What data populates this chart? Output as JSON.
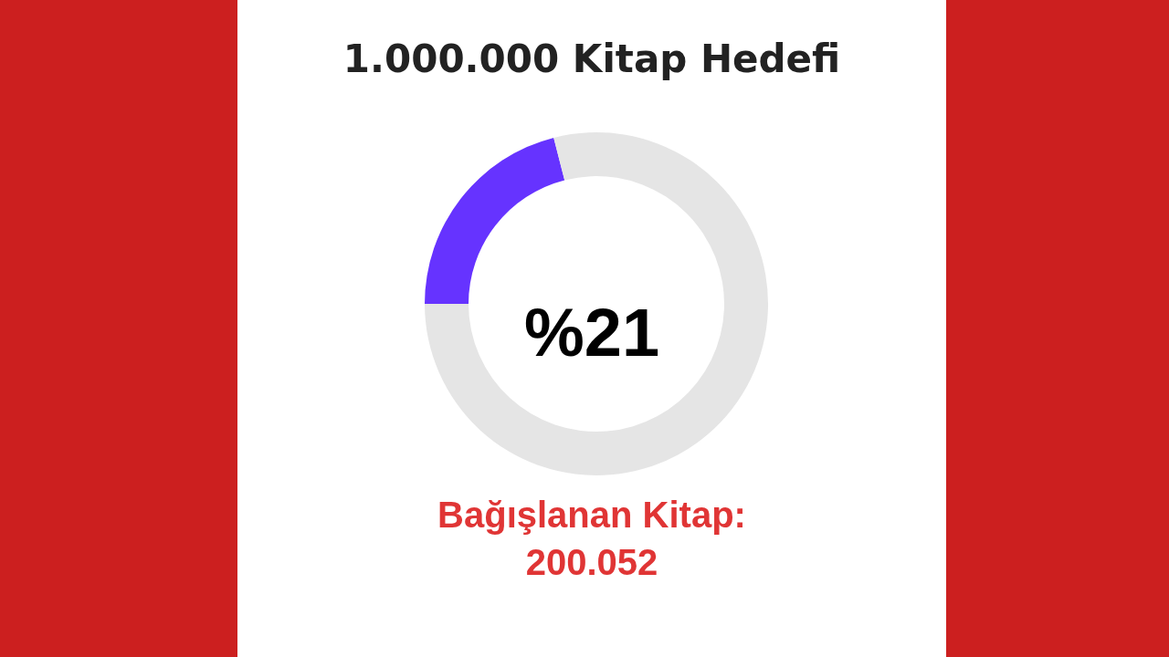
{
  "chart_data": {
    "type": "donut",
    "title": "1.000.000 Kitap Hedefi",
    "categories": [
      null,
      null
    ],
    "values": [
      21,
      79
    ],
    "colors": [
      "#6633ff",
      "#e5e5e5"
    ],
    "annotations": [
      "%21",
      "Bağışlanan Kitap: 200.052"
    ],
    "legend": false
  }
}
